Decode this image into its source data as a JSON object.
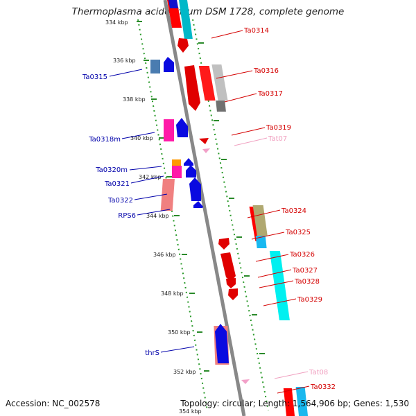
{
  "title": "Thermoplasma acidophilum DSM 1728, complete genome",
  "footer": {
    "accession": "Accession: NC_002578",
    "summary": "Topology: circular; Length: 1,564,906 bp; Genes: 1,530"
  },
  "colors": {
    "axis": "#888888",
    "dots": "#2a9a2a",
    "kbp_tick": "#2a8a2a",
    "forward_label": "#d40000",
    "reverse_label": "#0000aa",
    "rna_label": "#f0a0c0"
  },
  "kbp_labels": [
    "334 kbp",
    "336 kbp",
    "338 kbp",
    "340 kbp",
    "342 kbp",
    "344 kbp",
    "346 kbp",
    "348 kbp",
    "350 kbp",
    "352 kbp",
    "354 kbp"
  ],
  "right_labels": [
    "Ta0314",
    "Ta0316",
    "Ta0317",
    "Ta0319",
    "Tat07",
    "Ta0324",
    "Ta0325",
    "Ta0326",
    "Ta0327",
    "Ta0328",
    "Ta0329",
    "Tat08",
    "Ta0332"
  ],
  "left_labels": [
    "Ta0315",
    "Ta0318m",
    "Ta0320m",
    "Ta0321",
    "Ta0322",
    "RPS6",
    "thrS"
  ]
}
